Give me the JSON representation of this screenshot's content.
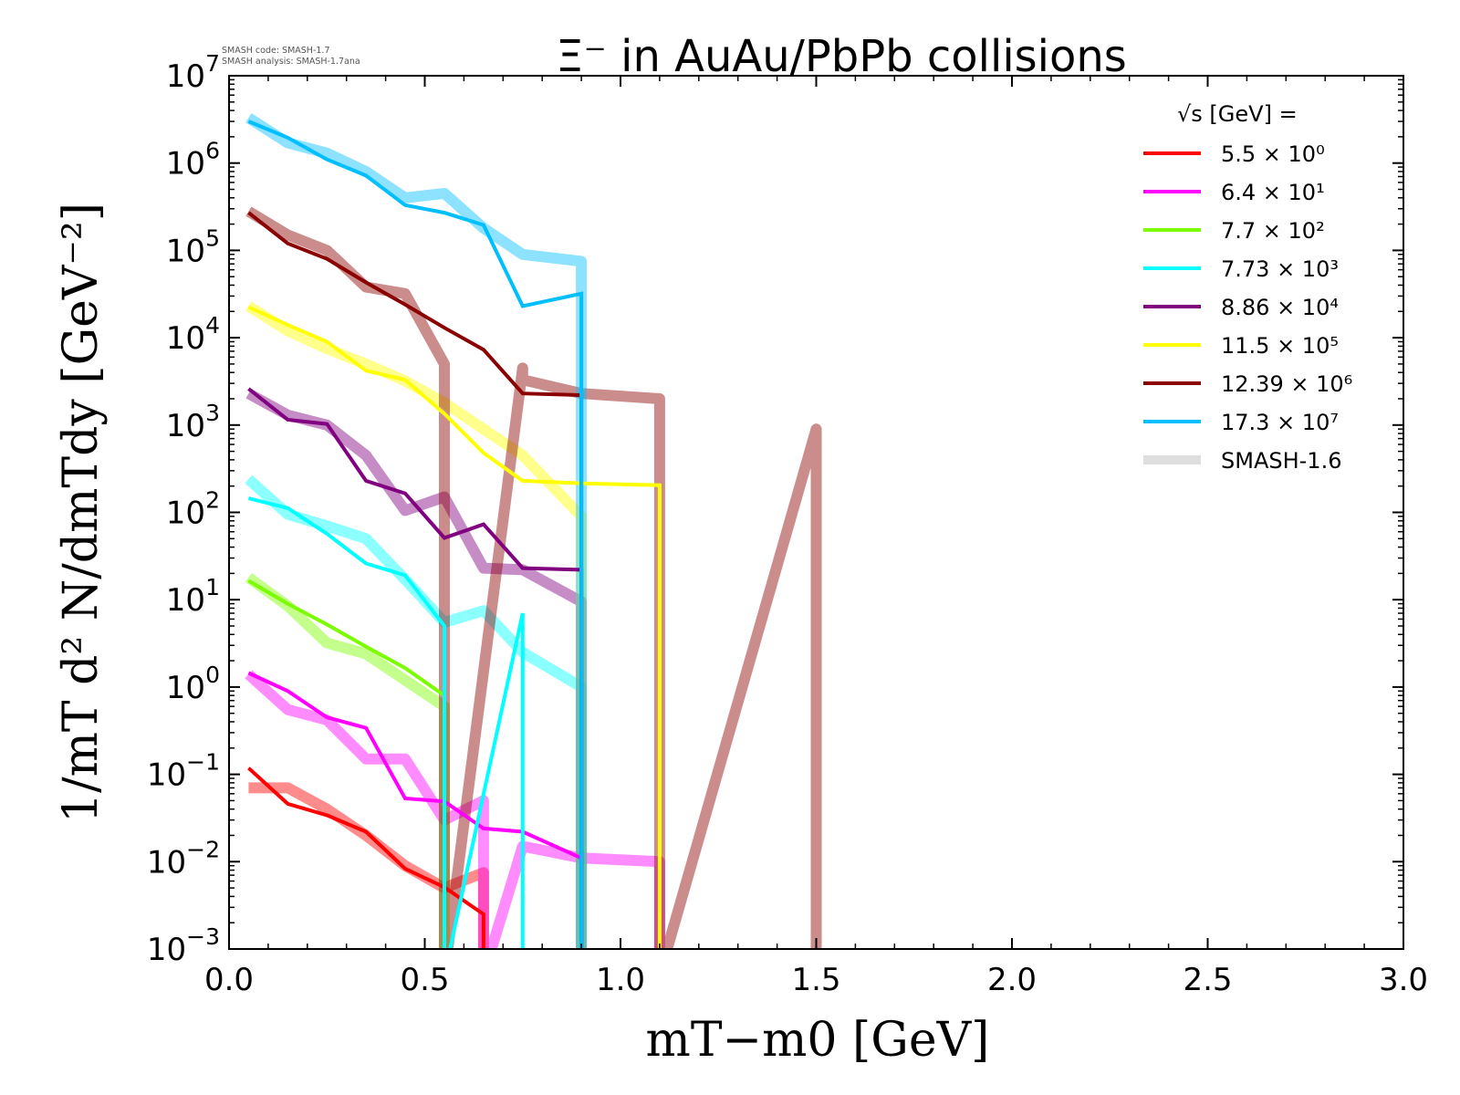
{
  "watermark": {
    "line1": "SMASH code:      SMASH-1.7",
    "line2": "SMASH analysis: SMASH-1.7ana"
  },
  "chart_data": {
    "type": "line",
    "title": "Ξ⁻ in AuAu/PbPb collisions",
    "xlabel": "mT−m0 [GeV]",
    "ylabel": "1/mT d² N/dmTdy [GeV⁻²]",
    "xlim": [
      0.0,
      3.0
    ],
    "ylim_log10": [
      -3,
      7
    ],
    "yscale": "log",
    "x_ticks": [
      {
        "value": 0.0,
        "label": "0.0"
      },
      {
        "value": 0.5,
        "label": "0.5"
      },
      {
        "value": 1.0,
        "label": "1.0"
      },
      {
        "value": 1.5,
        "label": "1.5"
      },
      {
        "value": 2.0,
        "label": "2.0"
      },
      {
        "value": 2.5,
        "label": "2.5"
      },
      {
        "value": 3.0,
        "label": "3.0"
      }
    ],
    "y_ticks": [
      {
        "exp": 7,
        "base": "10",
        "sup": "7"
      },
      {
        "exp": 6,
        "base": "10",
        "sup": "6"
      },
      {
        "exp": 5,
        "base": "10",
        "sup": "5"
      },
      {
        "exp": 4,
        "base": "10",
        "sup": "4"
      },
      {
        "exp": 3,
        "base": "10",
        "sup": "3"
      },
      {
        "exp": 2,
        "base": "10",
        "sup": "2"
      },
      {
        "exp": 1,
        "base": "10",
        "sup": "1"
      },
      {
        "exp": 0,
        "base": "10",
        "sup": "0"
      },
      {
        "exp": -1,
        "base": "10",
        "sup": "−1"
      },
      {
        "exp": -2,
        "base": "10",
        "sup": "−2"
      },
      {
        "exp": -3,
        "base": "10",
        "sup": "−3"
      }
    ],
    "grid": false,
    "legend": {
      "placement": "top-right",
      "header": "√s  [GeV] ="
    },
    "series": [
      {
        "name": "5.5 × 10⁰",
        "color": "#ff0000",
        "x": [
          0.05,
          0.15,
          0.25,
          0.35,
          0.45,
          0.55,
          0.65,
          0.65
        ],
        "y": [
          0.118,
          0.046,
          0.034,
          0.022,
          0.0083,
          0.0051,
          0.0025,
          1e-05
        ]
      },
      {
        "name": "6.4 × 10¹",
        "color": "#ff00ff",
        "x": [
          0.05,
          0.15,
          0.25,
          0.35,
          0.45,
          0.55,
          0.65,
          0.75,
          0.9,
          0.9
        ],
        "y": [
          1.45,
          0.9,
          0.45,
          0.34,
          0.053,
          0.049,
          0.024,
          0.022,
          0.011,
          1e-05
        ]
      },
      {
        "name": "7.7 × 10²",
        "color": "#7cfc00",
        "x": [
          0.05,
          0.15,
          0.25,
          0.35,
          0.45,
          0.55,
          0.55
        ],
        "y": [
          16.5,
          9.0,
          5.2,
          2.9,
          1.65,
          0.8,
          1e-05
        ]
      },
      {
        "name": "7.73 × 10³",
        "color": "#00ffff",
        "x": [
          0.05,
          0.15,
          0.25,
          0.35,
          0.45,
          0.55,
          0.55,
          0.55,
          0.75,
          0.75
        ],
        "y": [
          145,
          112,
          57,
          26,
          19,
          5.0,
          1e-05,
          1e-05,
          7.0,
          1e-05
        ]
      },
      {
        "name": "8.86 × 10⁴",
        "color": "#800080",
        "x": [
          0.05,
          0.15,
          0.25,
          0.35,
          0.45,
          0.55,
          0.65,
          0.75,
          0.9,
          0.9
        ],
        "y": [
          2600,
          1150,
          1030,
          230,
          165,
          51,
          73,
          23,
          22,
          1e-05
        ]
      },
      {
        "name": "11.5 × 10⁵",
        "color": "#ffff00",
        "x": [
          0.05,
          0.15,
          0.25,
          0.35,
          0.45,
          0.55,
          0.65,
          0.75,
          0.9,
          1.1,
          1.1
        ],
        "y": [
          22500,
          14000,
          9000,
          4200,
          3300,
          1350,
          480,
          230,
          215,
          205,
          1e-05
        ]
      },
      {
        "name": "12.39 × 10⁶",
        "color": "#8b0000",
        "x": [
          0.05,
          0.15,
          0.25,
          0.35,
          0.45,
          0.55,
          0.65,
          0.75,
          0.9,
          0.9
        ],
        "y": [
          270000,
          120000,
          80000,
          43000,
          24000,
          13000,
          7300,
          2300,
          2200,
          1e-05
        ]
      },
      {
        "name": "17.3 × 10⁷",
        "color": "#00bfff",
        "x": [
          0.05,
          0.15,
          0.25,
          0.35,
          0.45,
          0.55,
          0.65,
          0.75,
          0.9,
          0.9
        ],
        "y": [
          3000000,
          1950000,
          1100000,
          720000,
          330000,
          270000,
          195000,
          23000,
          32000,
          1e-05
        ]
      }
    ],
    "reference_series": {
      "name": "SMASH-1.6",
      "color": "#c8c8c8",
      "opacity": 0.45,
      "curves": [
        {
          "color": "#ff0000",
          "x": [
            0.05,
            0.15,
            0.25,
            0.35,
            0.45,
            0.55,
            0.65,
            0.65
          ],
          "y": [
            0.07,
            0.07,
            0.04,
            0.02,
            0.009,
            0.005,
            0.0075,
            1e-05
          ]
        },
        {
          "color": "#ff00ff",
          "x": [
            0.05,
            0.15,
            0.25,
            0.35,
            0.45,
            0.55,
            0.65,
            0.65,
            0.65,
            0.75,
            0.9,
            1.1,
            1.1
          ],
          "y": [
            1.4,
            0.55,
            0.42,
            0.15,
            0.15,
            0.03,
            0.05,
            1e-05,
            1e-05,
            0.015,
            0.011,
            0.01,
            1e-05
          ]
        },
        {
          "color": "#7cfc00",
          "x": [
            0.05,
            0.15,
            0.25,
            0.35,
            0.45,
            0.55,
            0.55
          ],
          "y": [
            18,
            8.5,
            3.2,
            2.4,
            1.2,
            0.6,
            1e-05
          ]
        },
        {
          "color": "#00ffff",
          "x": [
            0.05,
            0.15,
            0.25,
            0.35,
            0.45,
            0.55,
            0.65,
            0.75,
            0.9,
            0.9
          ],
          "y": [
            240,
            95,
            70,
            50,
            17,
            5.5,
            7.5,
            2.5,
            1.0,
            1e-05
          ]
        },
        {
          "color": "#800080",
          "x": [
            0.05,
            0.15,
            0.25,
            0.35,
            0.45,
            0.55,
            0.65,
            0.75,
            0.9,
            0.9
          ],
          "y": [
            2300,
            1300,
            1000,
            450,
            105,
            150,
            23,
            22,
            9.5,
            1e-05
          ]
        },
        {
          "color": "#ffff00",
          "x": [
            0.05,
            0.15,
            0.25,
            0.35,
            0.45,
            0.55,
            0.65,
            0.75,
            0.9,
            0.9
          ],
          "y": [
            23000,
            12000,
            7500,
            5000,
            3200,
            1800,
            900,
            450,
            90,
            1e-05
          ]
        },
        {
          "color": "#8b0000",
          "x": [
            0.05,
            0.15,
            0.25,
            0.35,
            0.45,
            0.55,
            0.55,
            0.55,
            0.75,
            0.75,
            0.9,
            1.1,
            1.1,
            1.5,
            1.5
          ],
          "y": [
            280000,
            150000,
            100000,
            38000,
            32000,
            5000,
            1e-05,
            1e-05,
            4500,
            3300,
            2300,
            2000,
            1e-05,
            900,
            1e-05
          ]
        },
        {
          "color": "#00bfff",
          "x": [
            0.05,
            0.15,
            0.25,
            0.35,
            0.45,
            0.55,
            0.65,
            0.75,
            0.9,
            0.9
          ],
          "y": [
            3300000,
            1700000,
            1300000,
            800000,
            400000,
            450000,
            180000,
            90000,
            75000,
            1e-05
          ]
        }
      ]
    }
  }
}
